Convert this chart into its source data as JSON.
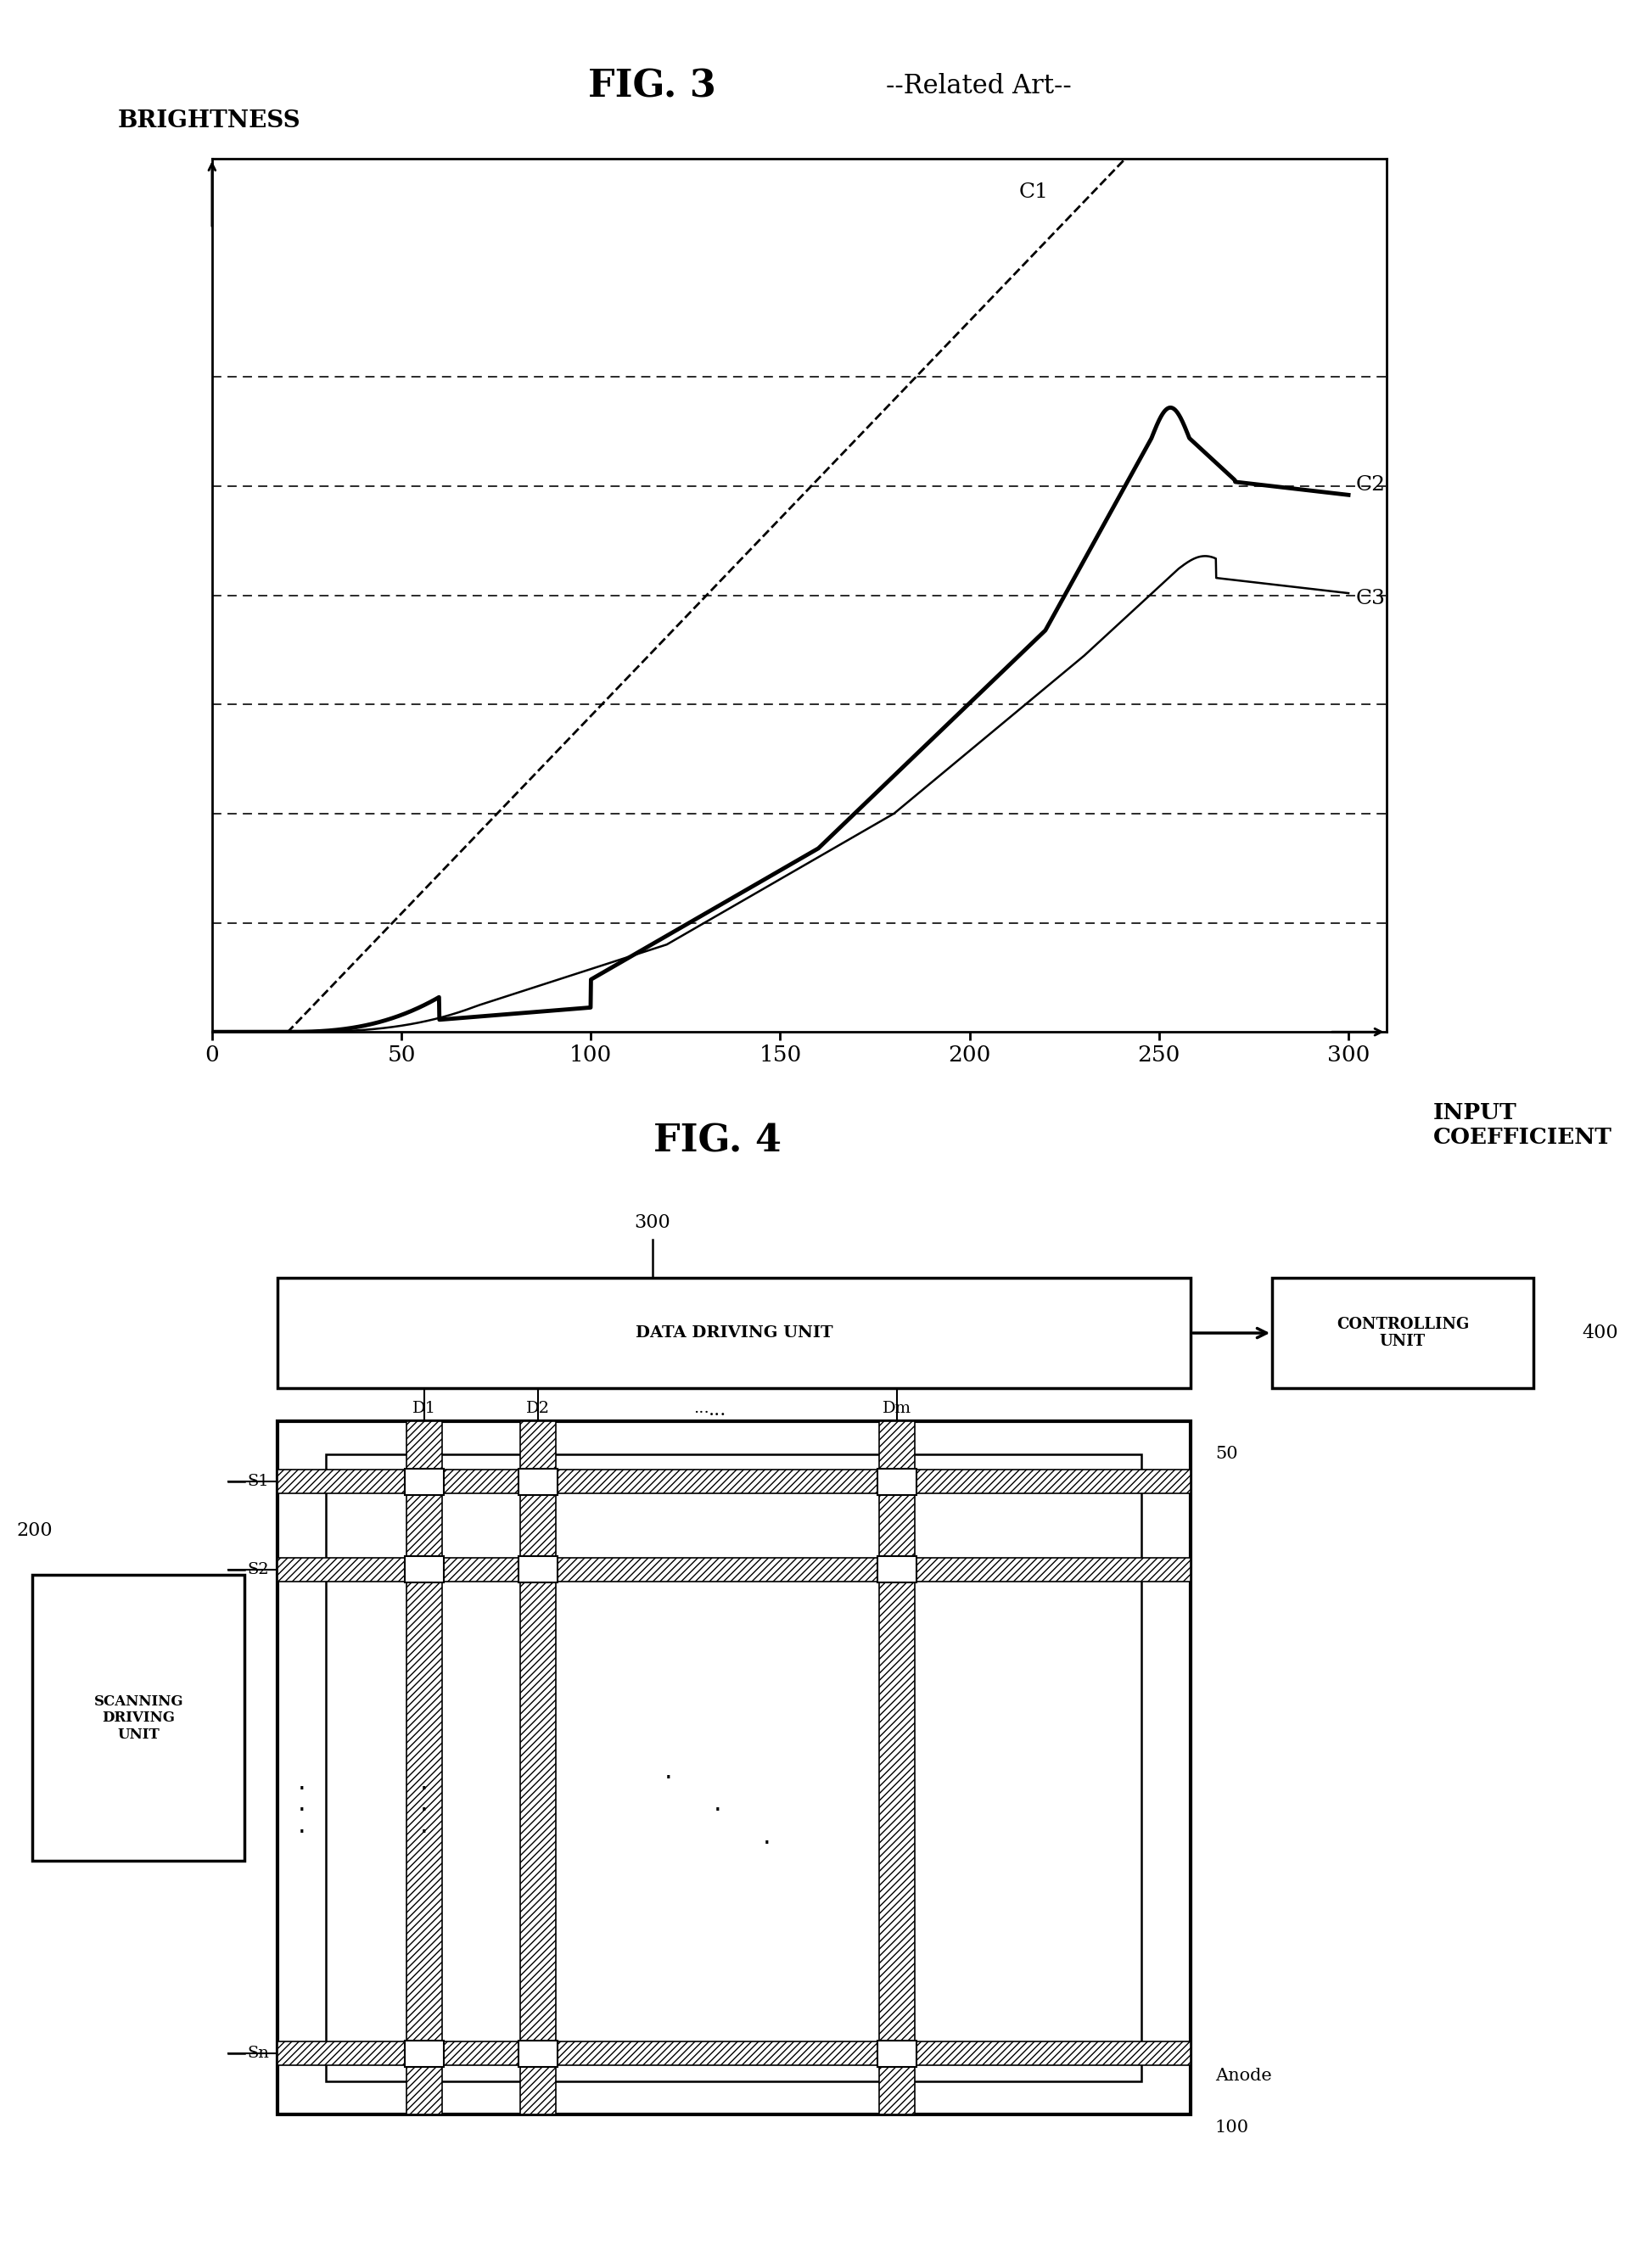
{
  "fig3_title": "FIG. 3",
  "fig3_subtitle": "--Related Art--",
  "fig4_title": "FIG. 4",
  "xlabel_line1": "INPUT",
  "xlabel_line2": "COEFFICIENT",
  "ylabel": "BRIGHTNESS",
  "xticks": [
    0,
    50,
    100,
    150,
    200,
    250,
    300
  ],
  "xlim": [
    0,
    310
  ],
  "ylim": [
    0,
    10
  ],
  "grid_y_values": [
    1.25,
    2.5,
    3.75,
    5.0,
    6.25,
    7.5
  ],
  "C1_label": "C1",
  "C2_label": "C2",
  "C3_label": "C3",
  "label_300": "300",
  "label_200": "200",
  "label_400": "400",
  "label_50": "50",
  "label_100": "100",
  "label_anode": "Anode",
  "data_driving_unit_text": "DATA DRIVING UNIT",
  "controlling_unit_text": "CONTROLLING\nUNIT",
  "scanning_driving_unit_text": "SCANNING\nDRIVING\nUNIT",
  "bg_color": "#ffffff",
  "black": "#000000"
}
